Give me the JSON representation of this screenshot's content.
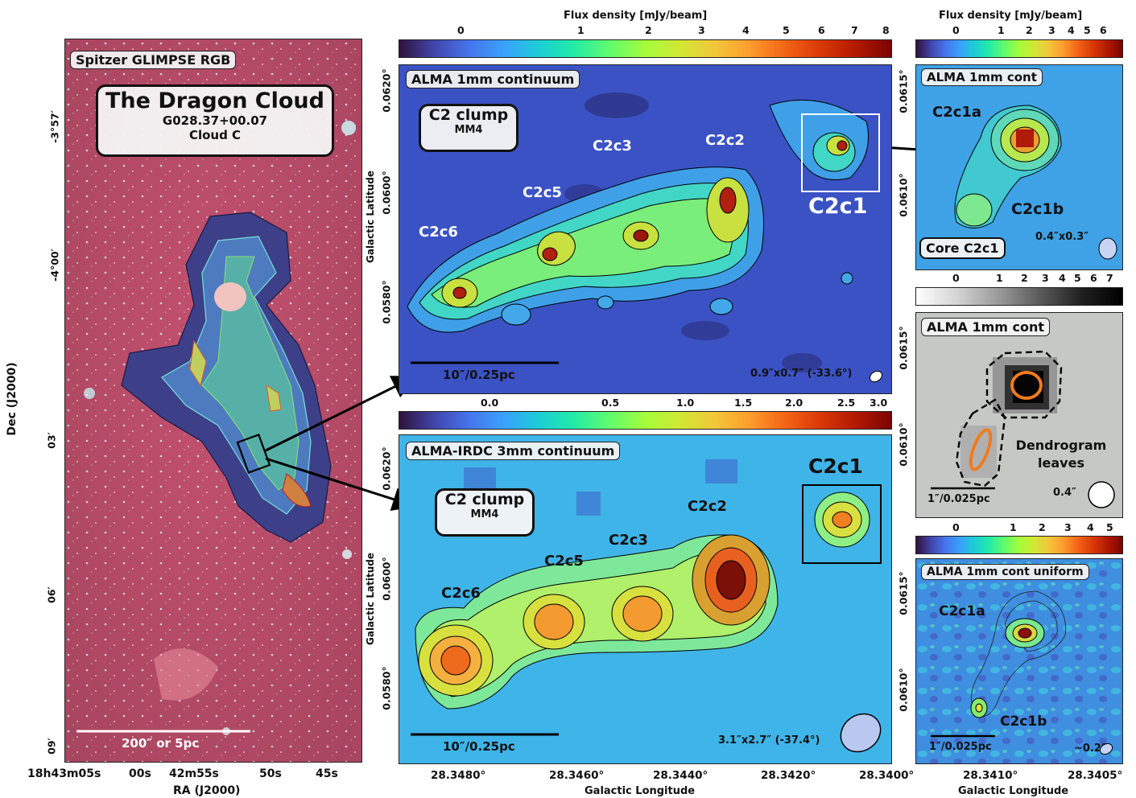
{
  "left": {
    "title": "Spitzer GLIMPSE RGB",
    "name_title": "The Dragon Cloud",
    "name_id": "G028.37+00.07",
    "name_cloud": "Cloud C",
    "scalebar": "200″ or 5pc",
    "ylabel": "Dec (J2000)",
    "xlabel": "RA (J2000)",
    "dec_ticks": [
      "-3°57′",
      "-4°00′",
      "03′",
      "06′",
      "09′"
    ],
    "ra_ticks": [
      "18h43m05s",
      "00s",
      "42m55s",
      "50s",
      "45s"
    ]
  },
  "top": {
    "cbar_title": "Flux density [mJy/beam]",
    "cbar_ticks": [
      "0",
      "1",
      "2",
      "3",
      "4",
      "5",
      "6",
      "7",
      "8"
    ],
    "title": "ALMA 1mm continuum",
    "clump": "C2 clump",
    "clump_sub": "MM4",
    "scalebar": "10″/0.25pc",
    "beam": "0.9″x0.7″ (-33.6°)",
    "ylabel": "Galactic Latitude",
    "lat_ticks": [
      "0.0620°",
      "0.0600°",
      "0.0580°"
    ],
    "cores": [
      "C2c1",
      "C2c2",
      "C2c3",
      "C2c5",
      "C2c6"
    ]
  },
  "bottom": {
    "cbar_ticks": [
      "0.0",
      "0.5",
      "1.0",
      "1.5",
      "2.0",
      "2.5",
      "3.0"
    ],
    "title": "ALMA-IRDC 3mm continuum",
    "clump": "C2 clump",
    "clump_sub": "MM4",
    "scalebar": "10″/0.25pc",
    "beam": "3.1″x2.7″ (-37.4°)",
    "ylabel": "Galactic Latitude",
    "xlabel": "Galactic Longitude",
    "lat_ticks": [
      "0.0620°",
      "0.0600°",
      "0.0580°"
    ],
    "lon_ticks": [
      "28.3480°",
      "28.3460°",
      "28.3440°",
      "28.3420°",
      "28.3400°"
    ],
    "cores": [
      "C2c1",
      "C2c2",
      "C2c3",
      "C2c5",
      "C2c6"
    ]
  },
  "r1": {
    "cbar_title": "Flux density [mJy/beam]",
    "cbar_ticks": [
      "0",
      "1",
      "2",
      "3",
      "4",
      "5",
      "6"
    ],
    "title": "ALMA 1mm cont",
    "core_a": "C2c1a",
    "core_b": "C2c1b",
    "core_label": "Core C2c1",
    "beam": "0.4″x0.3″",
    "lat_ticks": [
      "0.0615°",
      "0.0610°"
    ]
  },
  "r2": {
    "cbar_ticks": [
      "0",
      "1",
      "2",
      "3",
      "4",
      "5",
      "6",
      "7"
    ],
    "title": "ALMA 1mm cont",
    "leaves": "Dendrogram leaves",
    "scalebar": "1″/0.025pc",
    "beam": "0.4″",
    "lat_ticks": [
      "0.0615°",
      "0.0610°"
    ]
  },
  "r3": {
    "cbar_ticks": [
      "0",
      "1",
      "2",
      "3",
      "4",
      "5"
    ],
    "title": "ALMA 1mm cont uniform",
    "core_a": "C2c1a",
    "core_b": "C2c1b",
    "scalebar": "1″/0.025pc",
    "beam": "~0.2″",
    "xlabel": "Galactic Longitude",
    "lat_ticks": [
      "0.0615°",
      "0.0610°"
    ],
    "lon_ticks": [
      "28.3410°",
      "28.3405°"
    ]
  },
  "colors": {
    "jet_low": "#3b2f8f",
    "jet_mid": "#6fe08a",
    "jet_high": "#8a1010",
    "ir_bg": "#b8465e"
  }
}
